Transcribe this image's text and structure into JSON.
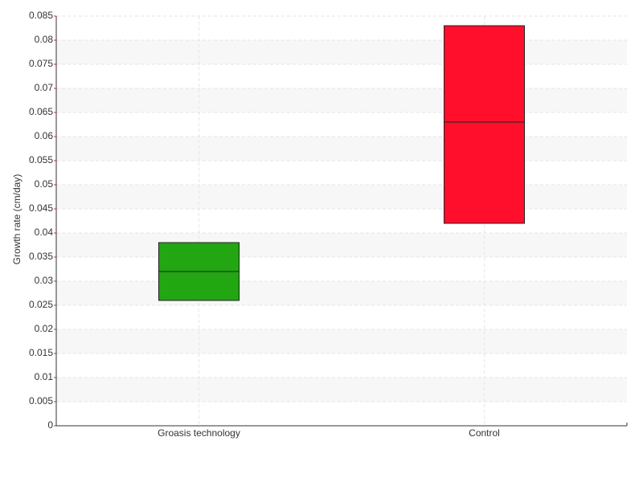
{
  "chart_data": {
    "type": "box",
    "y_label": "Growth rate (cm/day)",
    "categories": [
      "Groasis technology",
      "Control"
    ],
    "low": [
      0.026,
      0.042
    ],
    "median": [
      0.032,
      0.063
    ],
    "high": [
      0.038,
      0.083
    ],
    "colors": [
      "#22a612",
      "#ff0f2b"
    ],
    "ylim": [
      0,
      0.085
    ],
    "yticks": [
      0,
      0.005,
      0.01,
      0.015,
      0.02,
      0.025,
      0.03,
      0.035,
      0.04,
      0.045,
      0.05,
      0.055,
      0.06,
      0.065,
      0.07,
      0.075,
      0.08,
      0.085
    ],
    "grid": true
  }
}
